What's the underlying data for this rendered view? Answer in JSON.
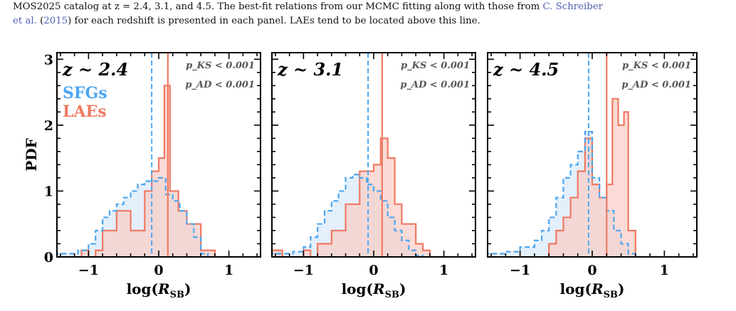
{
  "caption": {
    "line1": "MOS2025 catalog at z = 2.4, 3.1, and 4.5. The best-fit relations from our MCMC fitting along with those from ",
    "cite1": "C. Schreiber",
    "line2a": "et al.",
    "line2b": " (",
    "cite2": "2015",
    "line2c": ") for each redshift is presented in each panel. LAEs tend to be located above this line."
  },
  "colors": {
    "sfg": "#4da6f0",
    "lae": "#f07a62",
    "sfg_fill": "#dcebfa",
    "lae_fill": "#f8cfc8",
    "overlap": "#dcc6cd"
  },
  "chart_data": [
    {
      "type": "histogram",
      "panel_label": "z ~ 2.4",
      "xlabel": "log(R_SB)",
      "ylabel": "PDF",
      "xlim": [
        -1.45,
        1.45
      ],
      "ylim": [
        0,
        3.1
      ],
      "xticks": [
        -1,
        0,
        1
      ],
      "yticks": [
        0,
        1,
        2,
        3
      ],
      "stats": [
        "p_KS < 0.001",
        "p_AD < 0.001"
      ],
      "legend": [
        "SFGs",
        "LAEs"
      ],
      "sfg_median": -0.1,
      "lae_median": 0.13,
      "sfg": {
        "edges": [
          -1.45,
          -1.3,
          -1.15,
          -1.0,
          -0.9,
          -0.8,
          -0.7,
          -0.6,
          -0.5,
          -0.4,
          -0.3,
          -0.2,
          -0.1,
          0.0,
          0.1,
          0.2,
          0.3,
          0.4,
          0.5,
          0.6,
          0.7
        ],
        "pdf": [
          0.05,
          0.05,
          0.1,
          0.2,
          0.4,
          0.6,
          0.7,
          0.8,
          0.9,
          1.0,
          1.1,
          1.15,
          1.15,
          1.2,
          0.95,
          0.85,
          0.7,
          0.5,
          0.3,
          0.05
        ]
      },
      "lae": {
        "edges": [
          -1.45,
          -1.1,
          -1.0,
          -0.9,
          -0.8,
          -0.6,
          -0.4,
          -0.2,
          -0.1,
          0.0,
          0.08,
          0.16,
          0.28,
          0.4,
          0.6,
          0.8,
          1.0
        ],
        "pdf": [
          0,
          0.1,
          0.0,
          0.1,
          0.4,
          0.7,
          0.4,
          1.0,
          1.3,
          1.5,
          2.6,
          1.0,
          0.7,
          0.5,
          0.1,
          0.0
        ]
      }
    },
    {
      "type": "histogram",
      "panel_label": "z ~ 3.1",
      "xlabel": "log(R_SB)",
      "ylabel": "",
      "xlim": [
        -1.45,
        1.45
      ],
      "ylim": [
        0,
        3.1
      ],
      "xticks": [
        -1,
        0,
        1
      ],
      "yticks": [
        0,
        1,
        2,
        3
      ],
      "stats": [
        "p_KS < 0.001",
        "p_AD < 0.001"
      ],
      "legend": [],
      "sfg_median": -0.08,
      "lae_median": 0.12,
      "sfg": {
        "edges": [
          -1.45,
          -1.3,
          -1.15,
          -1.0,
          -0.9,
          -0.8,
          -0.7,
          -0.6,
          -0.5,
          -0.4,
          -0.3,
          -0.2,
          -0.1,
          0.0,
          0.1,
          0.2,
          0.3,
          0.4,
          0.5,
          0.6,
          0.7
        ],
        "pdf": [
          0.05,
          0.05,
          0.08,
          0.15,
          0.3,
          0.5,
          0.7,
          0.85,
          1.0,
          1.2,
          1.25,
          1.2,
          1.1,
          1.0,
          0.85,
          0.6,
          0.4,
          0.25,
          0.1,
          0.02
        ]
      },
      "lae": {
        "edges": [
          -1.45,
          -1.3,
          -1.15,
          -1.0,
          -0.9,
          -0.8,
          -0.6,
          -0.4,
          -0.2,
          0.0,
          0.1,
          0.2,
          0.3,
          0.4,
          0.6,
          0.7,
          0.8,
          1.0
        ],
        "pdf": [
          0.1,
          0.0,
          0.0,
          0.1,
          0.0,
          0.2,
          0.4,
          0.8,
          1.3,
          1.4,
          1.8,
          1.5,
          0.8,
          0.5,
          0.2,
          0.1,
          0.0
        ]
      }
    },
    {
      "type": "histogram",
      "panel_label": "z ~ 4.5",
      "xlabel": "log(R_SB)",
      "ylabel": "",
      "xlim": [
        -1.45,
        1.45
      ],
      "ylim": [
        0,
        3.1
      ],
      "xticks": [
        -1,
        0,
        1
      ],
      "yticks": [
        0,
        1,
        2,
        3
      ],
      "stats": [
        "p_KS < 0.001",
        "p_AD < 0.001"
      ],
      "legend": [],
      "sfg_median": -0.05,
      "lae_median": 0.2,
      "sfg": {
        "edges": [
          -1.45,
          -1.2,
          -1.0,
          -0.8,
          -0.7,
          -0.6,
          -0.5,
          -0.4,
          -0.3,
          -0.2,
          -0.1,
          0.0,
          0.1,
          0.2,
          0.3,
          0.4,
          0.5,
          0.6
        ],
        "pdf": [
          0.05,
          0.08,
          0.15,
          0.25,
          0.4,
          0.6,
          0.9,
          1.2,
          1.4,
          1.6,
          1.9,
          1.2,
          0.9,
          0.7,
          0.4,
          0.2,
          0.05
        ]
      },
      "lae": {
        "edges": [
          -0.6,
          -0.5,
          -0.4,
          -0.3,
          -0.2,
          -0.1,
          0.0,
          0.1,
          0.2,
          0.28,
          0.36,
          0.44,
          0.5,
          0.6
        ],
        "pdf": [
          0.2,
          0.4,
          0.6,
          0.9,
          1.3,
          1.8,
          1.1,
          0.9,
          1.1,
          2.4,
          2.0,
          2.2,
          0.4
        ]
      }
    }
  ]
}
